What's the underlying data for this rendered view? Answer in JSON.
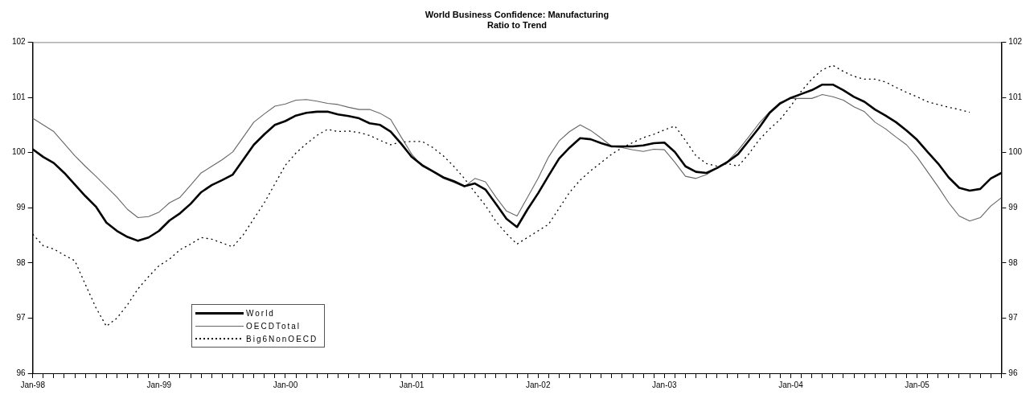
{
  "chart_data": {
    "type": "line",
    "title": "World Business Confidence: Manufacturing",
    "subtitle": "Ratio to Trend",
    "categories": [
      "Jan-98",
      null,
      null,
      null,
      null,
      null,
      null,
      null,
      null,
      null,
      null,
      null,
      "Jan-99",
      null,
      null,
      null,
      null,
      null,
      null,
      null,
      null,
      null,
      null,
      null,
      "Jan-00",
      null,
      null,
      null,
      null,
      null,
      null,
      null,
      null,
      null,
      null,
      null,
      "Jan-01",
      null,
      null,
      null,
      null,
      null,
      null,
      null,
      null,
      null,
      null,
      null,
      "Jan-02",
      null,
      null,
      null,
      null,
      null,
      null,
      null,
      null,
      null,
      null,
      null,
      "Jan-03",
      null,
      null,
      null,
      null,
      null,
      null,
      null,
      null,
      null,
      null,
      null,
      "Jan-04",
      null,
      null,
      null,
      null,
      null,
      null,
      null,
      null,
      null,
      null,
      null,
      "Jan-05",
      null,
      null,
      null,
      null,
      null,
      null,
      null,
      null
    ],
    "series": [
      {
        "name": "World",
        "color": "#000000",
        "line_style": "solid",
        "values": [
          100.06,
          99.92,
          99.81,
          99.63,
          99.42,
          99.21,
          99.02,
          98.73,
          98.58,
          98.47,
          98.4,
          98.46,
          98.58,
          98.77,
          98.9,
          99.07,
          99.28,
          99.41,
          99.5,
          99.6,
          99.87,
          100.14,
          100.33,
          100.5,
          100.57,
          100.67,
          100.72,
          100.74,
          100.74,
          100.69,
          100.66,
          100.62,
          100.53,
          100.5,
          100.38,
          100.16,
          99.92,
          99.77,
          99.66,
          99.55,
          99.48,
          99.39,
          99.44,
          99.33,
          99.07,
          98.8,
          98.65,
          98.97,
          99.26,
          99.58,
          99.89,
          100.09,
          100.26,
          100.24,
          100.17,
          100.11,
          100.11,
          100.11,
          100.13,
          100.17,
          100.18,
          100.01,
          99.75,
          99.65,
          99.63,
          99.72,
          99.83,
          99.97,
          100.21,
          100.45,
          100.72,
          100.89,
          100.99,
          101.06,
          101.13,
          101.23,
          101.23,
          101.13,
          101.01,
          100.92,
          100.78,
          100.67,
          100.55,
          100.4,
          100.23,
          100.01,
          99.8,
          99.55,
          99.36,
          99.31,
          99.34,
          99.53,
          99.63
        ]
      },
      {
        "name": "OECDTotal",
        "color": "#666666",
        "line_style": "solid",
        "values": [
          100.62,
          100.5,
          100.38,
          100.16,
          99.94,
          99.75,
          99.57,
          99.38,
          99.19,
          98.97,
          98.82,
          98.84,
          98.92,
          99.09,
          99.19,
          99.41,
          99.63,
          99.75,
          99.87,
          100.01,
          100.28,
          100.55,
          100.7,
          100.84,
          100.88,
          100.95,
          100.96,
          100.93,
          100.89,
          100.87,
          100.82,
          100.78,
          100.78,
          100.71,
          100.6,
          100.28,
          99.97,
          99.75,
          99.65,
          99.53,
          99.46,
          99.38,
          99.53,
          99.47,
          99.19,
          98.94,
          98.85,
          99.19,
          99.53,
          99.92,
          100.21,
          100.38,
          100.5,
          100.4,
          100.26,
          100.11,
          100.09,
          100.05,
          100.02,
          100.06,
          100.05,
          99.82,
          99.57,
          99.53,
          99.6,
          99.72,
          99.84,
          100.04,
          100.28,
          100.53,
          100.74,
          100.91,
          100.98,
          100.98,
          100.98,
          101.05,
          101.01,
          100.95,
          100.83,
          100.74,
          100.55,
          100.43,
          100.28,
          100.14,
          99.92,
          99.65,
          99.38,
          99.09,
          98.85,
          98.76,
          98.82,
          99.03,
          99.18
        ]
      },
      {
        "name": "Big6NonOECD",
        "color": "#000000",
        "line_style": "dotted",
        "values": [
          98.52,
          98.31,
          98.25,
          98.14,
          98.04,
          97.61,
          97.19,
          96.85,
          97.0,
          97.24,
          97.53,
          97.75,
          97.95,
          98.07,
          98.24,
          98.34,
          98.46,
          98.43,
          98.36,
          98.29,
          98.51,
          98.8,
          99.09,
          99.43,
          99.77,
          99.99,
          100.16,
          100.31,
          100.42,
          100.38,
          100.39,
          100.36,
          100.31,
          100.22,
          100.14,
          100.19,
          100.2,
          100.2,
          100.09,
          99.94,
          99.75,
          99.53,
          99.28,
          99.04,
          98.75,
          98.53,
          98.34,
          98.46,
          98.58,
          98.7,
          98.99,
          99.28,
          99.5,
          99.67,
          99.82,
          99.97,
          100.09,
          100.18,
          100.27,
          100.33,
          100.41,
          100.48,
          100.22,
          99.94,
          99.8,
          99.75,
          99.8,
          99.75,
          99.97,
          100.23,
          100.43,
          100.6,
          100.84,
          101.11,
          101.33,
          101.5,
          101.58,
          101.47,
          101.38,
          101.33,
          101.33,
          101.28,
          101.18,
          101.09,
          101.01,
          100.92,
          100.87,
          100.82,
          100.78,
          100.73,
          null,
          null,
          null
        ]
      }
    ],
    "ylim": [
      96,
      102
    ],
    "yticks": [
      96,
      97,
      98,
      99,
      100,
      101,
      102
    ],
    "y2lim": [
      96,
      102
    ],
    "y2ticks": [
      96,
      97,
      98,
      99,
      100,
      101,
      102
    ],
    "grid": false,
    "legend": "bottom left",
    "marker": "none"
  }
}
